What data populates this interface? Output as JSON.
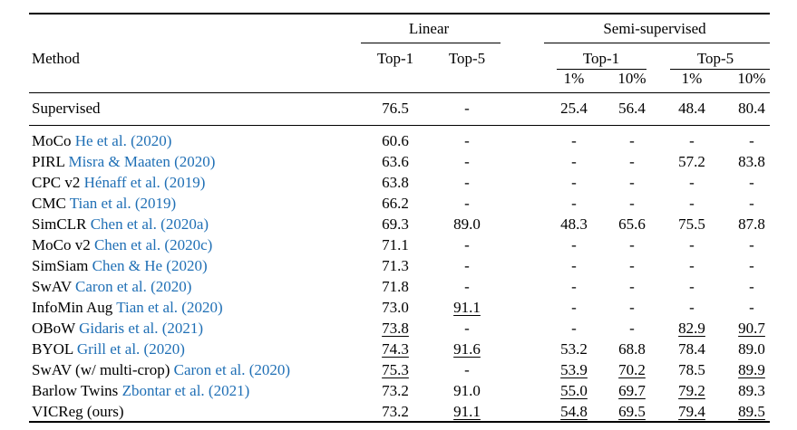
{
  "table": {
    "method_header": "Method",
    "group_linear": "Linear",
    "group_semi": "Semi-supervised",
    "sub_top1": "Top-1",
    "sub_top5": "Top-5",
    "semi_top1": "Top-1",
    "semi_top5": "Top-5",
    "pct": [
      "1%",
      "10%",
      "1%",
      "10%"
    ],
    "rows": [
      {
        "method": "Supervised",
        "cite": "",
        "cite_year": "",
        "values": [
          "76.5",
          "-",
          "25.4",
          "56.4",
          "48.4",
          "80.4"
        ],
        "underline": [
          false,
          false,
          false,
          false,
          false,
          false
        ]
      },
      {
        "method": "MoCo",
        "cite": "He et al. (",
        "cite_year": "2020",
        "values": [
          "60.6",
          "-",
          "-",
          "-",
          "-",
          "-"
        ],
        "underline": [
          false,
          false,
          false,
          false,
          false,
          false
        ]
      },
      {
        "method": "PIRL",
        "cite": "Misra & Maaten (",
        "cite_year": "2020",
        "values": [
          "63.6",
          "-",
          "-",
          "-",
          "57.2",
          "83.8"
        ],
        "underline": [
          false,
          false,
          false,
          false,
          false,
          false
        ]
      },
      {
        "method": "CPC v2",
        "cite": "Hénaff et al. (",
        "cite_year": "2019",
        "values": [
          "63.8",
          "-",
          "-",
          "-",
          "-",
          "-"
        ],
        "underline": [
          false,
          false,
          false,
          false,
          false,
          false
        ]
      },
      {
        "method": "CMC",
        "cite": "Tian et al. (",
        "cite_year": "2019",
        "values": [
          "66.2",
          "-",
          "-",
          "-",
          "-",
          "-"
        ],
        "underline": [
          false,
          false,
          false,
          false,
          false,
          false
        ]
      },
      {
        "method": "SimCLR",
        "cite": "Chen et al. (",
        "cite_year": "2020a",
        "values": [
          "69.3",
          "89.0",
          "48.3",
          "65.6",
          "75.5",
          "87.8"
        ],
        "underline": [
          false,
          false,
          false,
          false,
          false,
          false
        ]
      },
      {
        "method": "MoCo v2",
        "cite": "Chen et al. (",
        "cite_year": "2020c",
        "values": [
          "71.1",
          "-",
          "-",
          "-",
          "-",
          "-"
        ],
        "underline": [
          false,
          false,
          false,
          false,
          false,
          false
        ]
      },
      {
        "method": "SimSiam",
        "cite": "Chen & He (",
        "cite_year": "2020",
        "values": [
          "71.3",
          "-",
          "-",
          "-",
          "-",
          "-"
        ],
        "underline": [
          false,
          false,
          false,
          false,
          false,
          false
        ]
      },
      {
        "method": "SwAV",
        "cite": "Caron et al. (",
        "cite_year": "2020",
        "values": [
          "71.8",
          "-",
          "-",
          "-",
          "-",
          "-"
        ],
        "underline": [
          false,
          false,
          false,
          false,
          false,
          false
        ]
      },
      {
        "method": "InfoMin Aug",
        "cite": "Tian et al. (",
        "cite_year": "2020",
        "values": [
          "73.0",
          "91.1",
          "-",
          "-",
          "-",
          "-"
        ],
        "underline": [
          false,
          true,
          false,
          false,
          false,
          false
        ]
      },
      {
        "method": "OBoW",
        "cite": "Gidaris et al. (",
        "cite_year": "2021",
        "values": [
          "73.8",
          "-",
          "-",
          "-",
          "82.9",
          "90.7"
        ],
        "underline": [
          true,
          false,
          false,
          false,
          true,
          true
        ]
      },
      {
        "method": "BYOL",
        "cite": "Grill et al. (",
        "cite_year": "2020",
        "values": [
          "74.3",
          "91.6",
          "53.2",
          "68.8",
          "78.4",
          "89.0"
        ],
        "underline": [
          true,
          true,
          false,
          false,
          false,
          false
        ]
      },
      {
        "method": "SwAV (w/ multi-crop)",
        "cite": "Caron et al. (",
        "cite_year": "2020",
        "values": [
          "75.3",
          "-",
          "53.9",
          "70.2",
          "78.5",
          "89.9"
        ],
        "underline": [
          true,
          false,
          true,
          true,
          false,
          true
        ]
      },
      {
        "method": "Barlow Twins",
        "cite": "Zbontar et al. (",
        "cite_year": "2021",
        "values": [
          "73.2",
          "91.0",
          "55.0",
          "69.7",
          "79.2",
          "89.3"
        ],
        "underline": [
          false,
          false,
          true,
          true,
          true,
          false
        ]
      },
      {
        "method": "VICReg (ours)",
        "cite": "",
        "cite_year": "",
        "values": [
          "73.2",
          "91.1",
          "54.8",
          "69.5",
          "79.4",
          "89.5"
        ],
        "underline": [
          false,
          true,
          true,
          true,
          true,
          true
        ]
      }
    ],
    "colors": {
      "citation": "#1f6fb5",
      "text": "#000000"
    }
  }
}
